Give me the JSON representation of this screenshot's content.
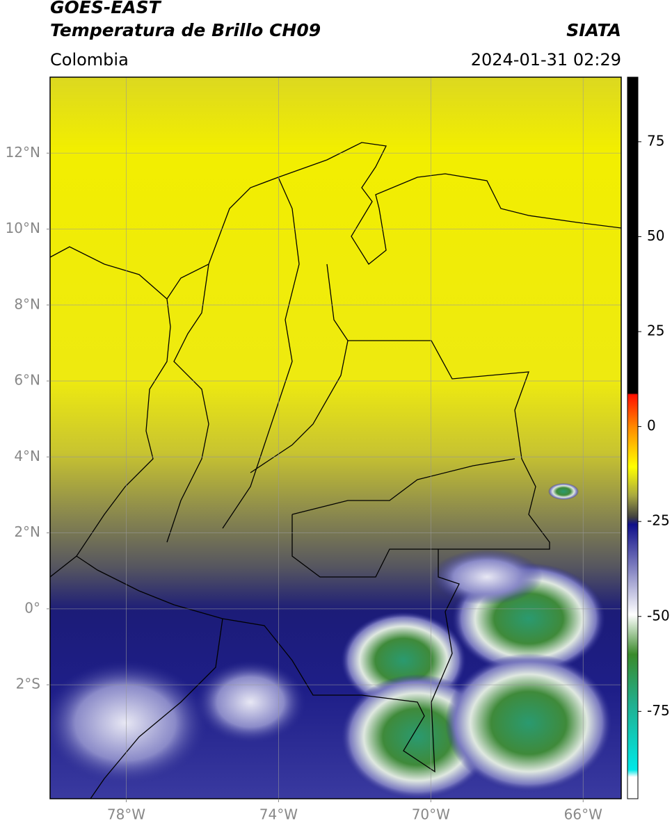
{
  "header": {
    "title": "GOES-EAST",
    "subtitle": "Temperatura de Brillo CH09",
    "source": "SIATA",
    "region": "Colombia",
    "datetime": "2024-01-31 02:29"
  },
  "map": {
    "lonlim": [
      -80,
      -65
    ],
    "latlim": [
      -5,
      14
    ],
    "lonticks": [
      {
        "value": -78,
        "label": "78°W"
      },
      {
        "value": -74,
        "label": "74°W"
      },
      {
        "value": -70,
        "label": "70°W"
      },
      {
        "value": -66,
        "label": "66°W"
      }
    ],
    "latticks": [
      {
        "value": 12,
        "label": "12°N"
      },
      {
        "value": 10,
        "label": "10°N"
      },
      {
        "value": 8,
        "label": "8°N"
      },
      {
        "value": 6,
        "label": "6°N"
      },
      {
        "value": 4,
        "label": "4°N"
      },
      {
        "value": 2,
        "label": "2°N"
      },
      {
        "value": 0,
        "label": "0°"
      },
      {
        "value": -2,
        "label": "2°S"
      }
    ],
    "grid": true
  },
  "colorbar": {
    "range": [
      -98,
      92
    ],
    "ticks": [
      75,
      50,
      25,
      0,
      -25,
      -50,
      -75
    ]
  }
}
